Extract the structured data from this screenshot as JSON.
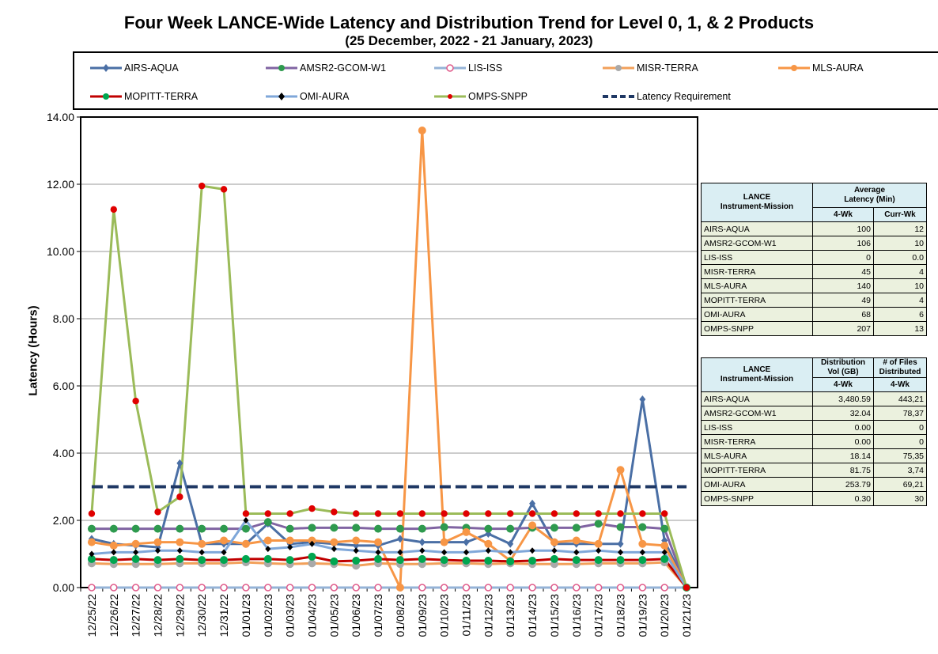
{
  "title": "Four Week LANCE-Wide Latency and Distribution Trend for Level 0, 1, & 2 Products",
  "subtitle": "(25  December,  2022  -  21  January, 2023)",
  "chart_data": {
    "type": "line",
    "ylabel": "Latency (Hours)",
    "xlabel": "",
    "ylim": [
      0,
      14
    ],
    "yticks": [
      "0.00",
      "2.00",
      "4.00",
      "6.00",
      "8.00",
      "10.00",
      "12.00",
      "14.00"
    ],
    "grid": true,
    "legend_position": "top",
    "categories": [
      "12/25/22",
      "12/26/22",
      "12/27/22",
      "12/28/22",
      "12/29/22",
      "12/30/22",
      "12/31/22",
      "01/01/23",
      "01/02/23",
      "01/03/23",
      "01/04/23",
      "01/05/23",
      "01/06/23",
      "01/07/23",
      "01/08/23",
      "01/09/23",
      "01/10/23",
      "01/11/23",
      "01/12/23",
      "01/13/23",
      "01/14/23",
      "01/15/23",
      "01/16/23",
      "01/17/23",
      "01/18/23",
      "01/19/23",
      "01/20/23",
      "01/21/23"
    ],
    "series": [
      {
        "name": "AIRS-AQUA",
        "color": "#4a6fa5",
        "marker": "diamond",
        "markerColor": "#4a6fa5",
        "values": [
          1.45,
          1.3,
          1.25,
          1.2,
          3.7,
          1.3,
          1.3,
          1.3,
          1.9,
          1.3,
          1.35,
          1.3,
          1.25,
          1.25,
          1.45,
          1.35,
          1.35,
          1.35,
          1.6,
          1.3,
          2.5,
          1.3,
          1.3,
          1.3,
          1.3,
          5.6,
          1.4,
          0.0
        ]
      },
      {
        "name": "AMSR2-GCOM-W1",
        "color": "#8064a2",
        "marker": "circle",
        "markerColor": "#2e9a4e",
        "values": [
          1.75,
          1.75,
          1.75,
          1.75,
          1.75,
          1.75,
          1.75,
          1.75,
          1.95,
          1.75,
          1.78,
          1.78,
          1.78,
          1.75,
          1.75,
          1.75,
          1.8,
          1.78,
          1.75,
          1.75,
          1.78,
          1.78,
          1.78,
          1.9,
          1.8,
          1.8,
          1.75,
          0.0
        ]
      },
      {
        "name": "LIS-ISS",
        "color": "#95b3d7",
        "marker": "circle-open",
        "markerColor": "#e05a8a",
        "values": [
          0,
          0,
          0,
          0,
          0,
          0,
          0,
          0,
          0,
          0,
          0,
          0,
          0,
          0,
          0,
          0,
          0,
          0,
          0,
          0,
          0,
          0,
          0,
          0,
          0,
          0,
          0,
          0
        ]
      },
      {
        "name": "MISR-TERRA",
        "color": "#f2a05a",
        "marker": "circle",
        "markerColor": "#a9a9a9",
        "values": [
          0.72,
          0.7,
          0.7,
          0.7,
          0.72,
          0.72,
          0.72,
          0.75,
          0.72,
          0.7,
          0.72,
          0.7,
          0.65,
          0.72,
          0.7,
          0.7,
          0.72,
          0.72,
          0.7,
          0.72,
          0.7,
          0.7,
          0.7,
          0.72,
          0.72,
          0.72,
          0.75,
          0.0
        ]
      },
      {
        "name": "MLS-AURA",
        "color": "#f79646",
        "marker": "circle",
        "markerColor": "#f79646",
        "values": [
          1.35,
          1.25,
          1.3,
          1.35,
          1.35,
          1.3,
          1.4,
          1.3,
          1.4,
          1.4,
          1.4,
          1.35,
          1.4,
          1.35,
          0.0,
          13.6,
          1.35,
          1.65,
          1.3,
          0.8,
          1.85,
          1.35,
          1.4,
          1.3,
          3.5,
          1.3,
          1.25,
          0.0
        ]
      },
      {
        "name": "MOPITT-TERRA",
        "color": "#c00000",
        "marker": "circle",
        "markerColor": "#00a650",
        "values": [
          0.85,
          0.82,
          0.85,
          0.82,
          0.85,
          0.82,
          0.82,
          0.85,
          0.85,
          0.82,
          0.92,
          0.78,
          0.8,
          0.85,
          0.82,
          0.85,
          0.82,
          0.8,
          0.8,
          0.78,
          0.8,
          0.85,
          0.82,
          0.82,
          0.82,
          0.82,
          0.85,
          0.0
        ]
      },
      {
        "name": "OMI-AURA",
        "color": "#7fa7d9",
        "marker": "diamond-small",
        "markerColor": "#000000",
        "values": [
          1.0,
          1.05,
          1.05,
          1.1,
          1.1,
          1.05,
          1.05,
          2.0,
          1.15,
          1.2,
          1.3,
          1.15,
          1.1,
          1.05,
          1.05,
          1.1,
          1.05,
          1.05,
          1.1,
          1.05,
          1.1,
          1.1,
          1.05,
          1.1,
          1.05,
          1.05,
          1.05,
          0.0
        ]
      },
      {
        "name": "OMPS-SNPP",
        "color": "#9bbb59",
        "marker": "circle-small",
        "markerColor": "#e00000",
        "values": [
          2.2,
          11.25,
          5.55,
          2.25,
          2.7,
          11.95,
          11.85,
          2.2,
          2.2,
          2.2,
          2.35,
          2.25,
          2.2,
          2.2,
          2.2,
          2.2,
          2.2,
          2.2,
          2.2,
          2.2,
          2.2,
          2.2,
          2.2,
          2.2,
          2.2,
          2.2,
          2.2,
          0.0
        ]
      },
      {
        "name": "Latency Requirement",
        "color": "#1f3864",
        "marker": "none",
        "dashed": true,
        "values": [
          3,
          3,
          3,
          3,
          3,
          3,
          3,
          3,
          3,
          3,
          3,
          3,
          3,
          3,
          3,
          3,
          3,
          3,
          3,
          3,
          3,
          3,
          3,
          3,
          3,
          3,
          3,
          3
        ]
      }
    ]
  },
  "latency_table": {
    "header_col1": [
      "LANCE",
      "Instrument-Mission"
    ],
    "header_col2": [
      "Average",
      "Latency (Min)"
    ],
    "sub_headers": [
      "4-Wk",
      "Curr-Wk"
    ],
    "rows": [
      {
        "name": "AIRS-AQUA",
        "wk4": "100",
        "curr": "12"
      },
      {
        "name": "AMSR2-GCOM-W1",
        "wk4": "106",
        "curr": "10"
      },
      {
        "name": "LIS-ISS",
        "wk4": "0",
        "curr": "0.0"
      },
      {
        "name": "MISR-TERRA",
        "wk4": "45",
        "curr": "4"
      },
      {
        "name": "MLS-AURA",
        "wk4": "140",
        "curr": "10"
      },
      {
        "name": "MOPITT-TERRA",
        "wk4": "49",
        "curr": "4"
      },
      {
        "name": "OMI-AURA",
        "wk4": "68",
        "curr": "6"
      },
      {
        "name": "OMPS-SNPP",
        "wk4": "207",
        "curr": "13"
      }
    ]
  },
  "distribution_table": {
    "header_col1": [
      "LANCE",
      "Instrument-Mission"
    ],
    "header_col2": [
      "Distribution",
      "Vol (GB)"
    ],
    "header_col3": [
      "# of Files",
      "Distributed"
    ],
    "sub_headers": [
      "4-Wk",
      "4-Wk"
    ],
    "rows": [
      {
        "name": "AIRS-AQUA",
        "vol": "3,480.59",
        "files": "443,21"
      },
      {
        "name": "AMSR2-GCOM-W1",
        "vol": "32.04",
        "files": "78,37"
      },
      {
        "name": "LIS-ISS",
        "vol": "0.00",
        "files": "0"
      },
      {
        "name": "MISR-TERRA",
        "vol": "0.00",
        "files": "0"
      },
      {
        "name": "MLS-AURA",
        "vol": "18.14",
        "files": "75,35"
      },
      {
        "name": "MOPITT-TERRA",
        "vol": "81.75",
        "files": "3,74"
      },
      {
        "name": "OMI-AURA",
        "vol": "253.79",
        "files": "69,21"
      },
      {
        "name": "OMPS-SNPP",
        "vol": "0.30",
        "files": "30"
      }
    ]
  }
}
